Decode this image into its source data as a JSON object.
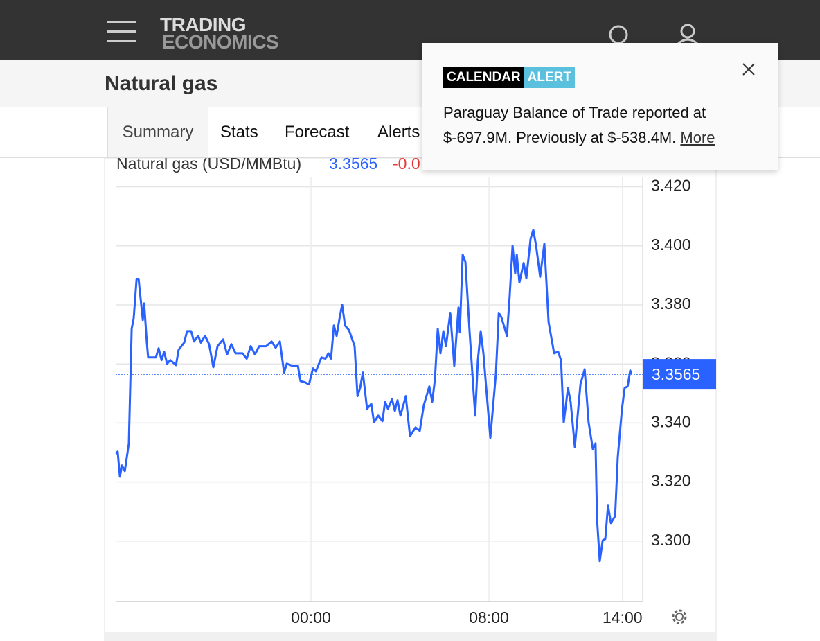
{
  "header": {
    "logo_top": "TRADING",
    "logo_bottom": "ECONOMICS"
  },
  "page_title": "Natural gas",
  "tabs": [
    "Summary",
    "Stats",
    "Forecast",
    "Alerts"
  ],
  "chart_data": {
    "type": "line",
    "change": "-0.0",
    "x": [
      -8.78,
      -8.69,
      -8.59,
      -8.5,
      -8.37,
      -8.19,
      -8.06,
      -7.97,
      -7.84,
      -7.75,
      -7.56,
      -7.5,
      -7.38,
      -7.32,
      -6.97,
      -6.85,
      -6.72,
      -6.6,
      -6.47,
      -6.32,
      -6.07,
      -5.95,
      -5.7,
      -5.57,
      -5.39,
      -5.26,
      -5.07,
      -4.95,
      -4.76,
      -4.58,
      -4.39,
      -4.2,
      -3.95,
      -3.77,
      -3.58,
      -3.39,
      -3.08,
      -2.89,
      -2.71,
      -2.52,
      -2.33,
      -2.02,
      -1.77,
      -1.59,
      -1.4,
      -1.21,
      -1.09,
      -0.84,
      -0.59,
      -0.47,
      -0.28,
      -0.09,
      0.09,
      0.22,
      0.47,
      0.65,
      0.78,
      0.9,
      1.03,
      1.15,
      1.28,
      1.4,
      1.53,
      1.71,
      1.96,
      2.09,
      2.21,
      2.33,
      2.52,
      2.71,
      2.83,
      3.02,
      3.21,
      3.33,
      3.46,
      3.64,
      3.77,
      3.89,
      4.02,
      4.26,
      4.45,
      4.7,
      4.89,
      5.07,
      5.32,
      5.45,
      5.57,
      5.7,
      5.82,
      5.95,
      6.07,
      6.26,
      6.44,
      6.63,
      6.69,
      6.82,
      6.94,
      7.13,
      7.38,
      7.5,
      7.63,
      7.75,
      8.06,
      8.31,
      8.44,
      8.56,
      8.81,
      8.93,
      9.06,
      9.18,
      9.25,
      9.37,
      9.56,
      9.68,
      9.87,
      9.99,
      10.12,
      10.3,
      10.49,
      10.68,
      10.93,
      11.11,
      11.24,
      11.36,
      11.55,
      11.67,
      11.86,
      12.11,
      12.3,
      12.48,
      12.67,
      12.79,
      12.86,
      12.98,
      13.11,
      13.23,
      13.35,
      13.48,
      13.67,
      13.79,
      13.98,
      14.1,
      14.23,
      14.35,
      14.41
    ],
    "series": [
      {
        "name": "Natural gas (USD/MMBtu)",
        "color": "#2962ff",
        "values": [
          3.3296,
          3.3303,
          3.3218,
          3.3256,
          3.3237,
          3.3331,
          3.3719,
          3.3754,
          3.3888,
          3.3888,
          3.3749,
          3.3805,
          3.3672,
          3.3622,
          3.3622,
          3.3653,
          3.3613,
          3.3641,
          3.3601,
          3.3613,
          3.3596,
          3.3648,
          3.3672,
          3.3711,
          3.3711,
          3.3676,
          3.3695,
          3.3672,
          3.3695,
          3.3667,
          3.3589,
          3.366,
          3.3683,
          3.3632,
          3.3667,
          3.3636,
          3.3636,
          3.3618,
          3.366,
          3.3632,
          3.366,
          3.366,
          3.3676,
          3.3655,
          3.3676,
          3.3571,
          3.3601,
          3.3594,
          3.3594,
          3.3542,
          3.3538,
          3.3531,
          3.3585,
          3.3575,
          3.3622,
          3.3618,
          3.3636,
          3.3618,
          3.373,
          3.3695,
          3.3754,
          3.3801,
          3.373,
          3.3714,
          3.366,
          3.3491,
          3.3519,
          3.3571,
          3.3448,
          3.3465,
          3.3402,
          3.3425,
          3.3406,
          3.3472,
          3.3448,
          3.3481,
          3.3441,
          3.3477,
          3.3425,
          3.3491,
          3.3355,
          3.3385,
          3.3373,
          3.346,
          3.3524,
          3.3472,
          3.3547,
          3.3719,
          3.3636,
          3.3711,
          3.366,
          3.3773,
          3.3594,
          3.3791,
          3.3707,
          3.397,
          3.3946,
          3.3707,
          3.3425,
          3.3613,
          3.3711,
          3.3636,
          3.335,
          3.3566,
          3.3773,
          3.3758,
          3.3695,
          3.3829,
          3.4,
          3.3906,
          3.397,
          3.3876,
          3.3942,
          3.389,
          3.4024,
          3.4054,
          3.4,
          3.3895,
          3.4007,
          3.3742,
          3.3636,
          3.3641,
          3.3613,
          3.3402,
          3.3519,
          3.3472,
          3.3319,
          3.3531,
          3.3582,
          3.3402,
          3.3312,
          3.3331,
          3.3073,
          3.2932,
          3.3002,
          3.3007,
          3.312,
          3.3061,
          3.3085,
          3.3284,
          3.3448,
          3.3519,
          3.3524,
          3.3578,
          3.3565
        ]
      }
    ],
    "xlim": [
      -8.78,
      14.91
    ],
    "xticks": [
      {
        "value": 0,
        "label": "00:00"
      },
      {
        "value": 8,
        "label": "08:00"
      },
      {
        "value": 14,
        "label": "14:00"
      }
    ],
    "ylim": [
      3.28,
      3.43
    ],
    "yticks": [
      {
        "value": 3.3,
        "label": "3.300"
      },
      {
        "value": 3.32,
        "label": "3.320"
      },
      {
        "value": 3.34,
        "label": "3.340"
      },
      {
        "value": 3.36,
        "label": "3.360"
      },
      {
        "value": 3.38,
        "label": "3.380"
      },
      {
        "value": 3.4,
        "label": "3.400"
      },
      {
        "value": 3.42,
        "label": "3.420"
      }
    ],
    "grid": true
  },
  "alert": {
    "badge": [
      "CALENDAR",
      "ALERT"
    ],
    "message": "Paraguay Balance of Trade reported at $-697.9M. Previously at $-538.4M.",
    "link": "More"
  }
}
